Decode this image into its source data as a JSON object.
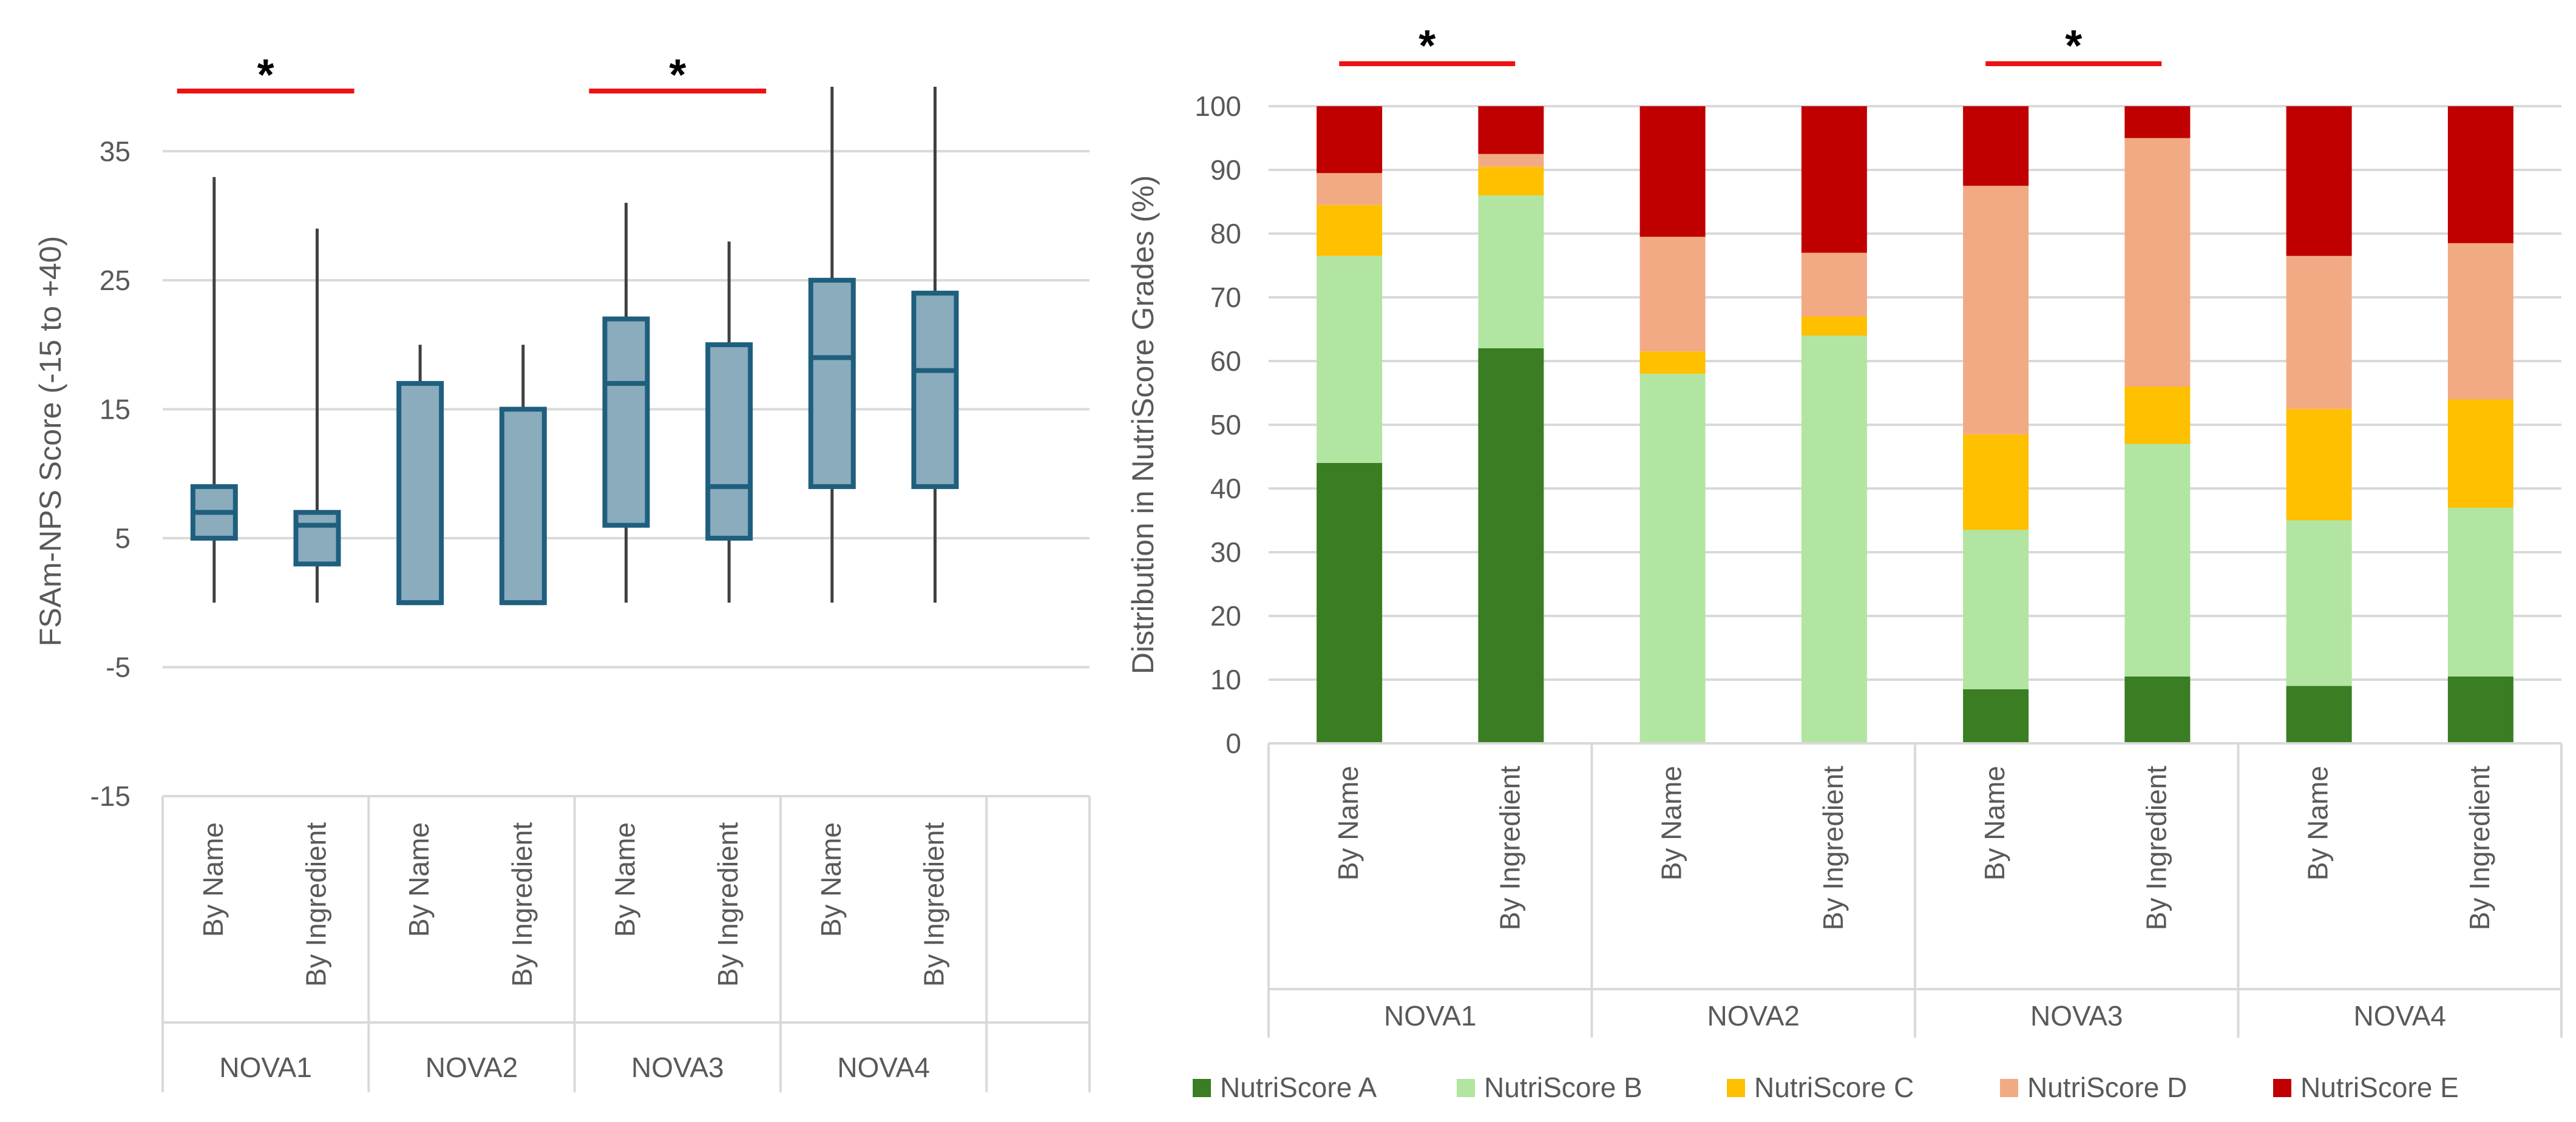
{
  "chart_data": [
    {
      "type": "box",
      "ylabel": "FSAm-NPS Score (-15 to +40)",
      "yticks": [
        -15,
        -5,
        5,
        15,
        25,
        35
      ],
      "ylim": [
        -15,
        40
      ],
      "grid": true,
      "groups": [
        "NOVA1",
        "NOVA2",
        "NOVA3",
        "NOVA4"
      ],
      "boxes": [
        {
          "group": "NOVA1",
          "label": "By Name",
          "min": 0,
          "q1": 5,
          "median": 7,
          "q3": 9,
          "max": 33
        },
        {
          "group": "NOVA1",
          "label": "By Ingredient",
          "min": 0,
          "q1": 3,
          "median": 6,
          "q3": 7,
          "max": 29
        },
        {
          "group": "NOVA2",
          "label": "By Name",
          "min": 0,
          "q1": 0,
          "median": 0,
          "q3": 17,
          "max": 20
        },
        {
          "group": "NOVA2",
          "label": "By Ingredient",
          "min": 0,
          "q1": 0,
          "median": 0,
          "q3": 15,
          "max": 20
        },
        {
          "group": "NOVA3",
          "label": "By Name",
          "min": 0,
          "q1": 6,
          "median": 17,
          "q3": 22,
          "max": 31
        },
        {
          "group": "NOVA3",
          "label": "By Ingredient",
          "min": 0,
          "q1": 5,
          "median": 9,
          "q3": 20,
          "max": 28
        },
        {
          "group": "NOVA4",
          "label": "By Name",
          "min": 0,
          "q1": 9,
          "median": 19,
          "q3": 25,
          "max": 40
        },
        {
          "group": "NOVA4",
          "label": "By Ingredient",
          "min": 0,
          "q1": 9,
          "median": 18,
          "q3": 24,
          "max": 40
        }
      ],
      "significance": [
        {
          "group": "NOVA1",
          "mark": "*"
        },
        {
          "group": "NOVA3",
          "mark": "*"
        }
      ],
      "colors": {
        "box_fill": "#8aacbd",
        "box_stroke": "#1f5f7e",
        "whisker": "#404040",
        "significance_line": "#ee1111"
      }
    },
    {
      "type": "stacked_bar",
      "ylabel": "Distribution in NutriScore Grades (%)",
      "yticks": [
        0,
        10,
        20,
        30,
        40,
        50,
        60,
        70,
        80,
        90,
        100
      ],
      "ylim": [
        0,
        100
      ],
      "grid": true,
      "legend_position": "bottom",
      "groups": [
        "NOVA1",
        "NOVA2",
        "NOVA3",
        "NOVA4"
      ],
      "categories": [
        "By Name",
        "By Ingredient",
        "By Name",
        "By Ingredient",
        "By Name",
        "By Ingredient",
        "By Name",
        "By Ingredient"
      ],
      "series": [
        {
          "name": "NutriScore A",
          "color": "#3a7d22",
          "values": [
            44,
            62,
            0,
            0,
            8.5,
            10.5,
            9,
            10.5
          ]
        },
        {
          "name": "NutriScore B",
          "color": "#b2e5a1",
          "values": [
            32.5,
            24,
            58,
            64,
            25,
            36.5,
            26,
            26.5
          ]
        },
        {
          "name": "NutriScore C",
          "color": "#ffc000",
          "values": [
            8,
            4.5,
            3.5,
            3,
            15,
            9,
            17.5,
            17
          ]
        },
        {
          "name": "NutriScore D",
          "color": "#f2aa85",
          "values": [
            5,
            2,
            18,
            10,
            39,
            39,
            24,
            24.5
          ]
        },
        {
          "name": "NutriScore E",
          "color": "#c00000",
          "values": [
            10.5,
            7.5,
            20.5,
            23,
            12.5,
            5,
            23.5,
            21.5
          ]
        }
      ],
      "significance": [
        {
          "group": "NOVA1",
          "mark": "*"
        },
        {
          "group": "NOVA3",
          "mark": "*"
        }
      ]
    }
  ]
}
